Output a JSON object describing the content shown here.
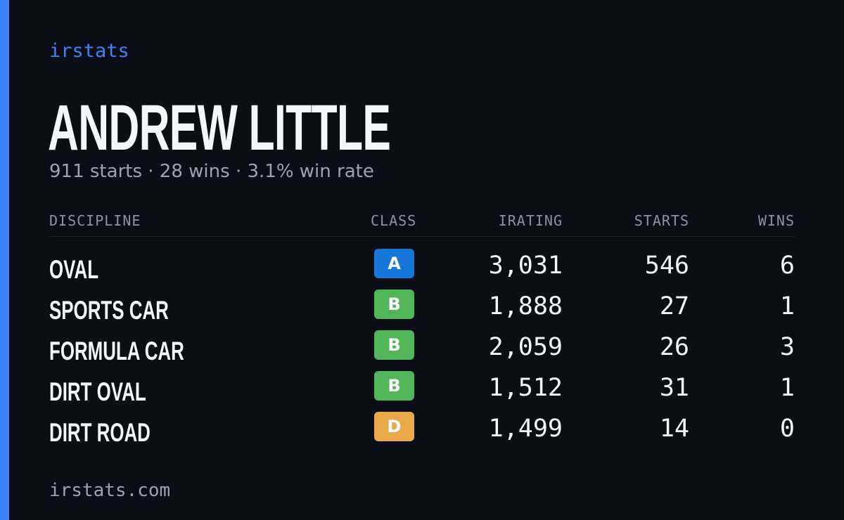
{
  "brand": "irstats",
  "driver": {
    "name": "ANDREW LITTLE",
    "starts_text": "911 starts",
    "separator": "·",
    "wins_text": "28 wins",
    "win_rate_text": "3.1% win rate"
  },
  "table": {
    "headers": {
      "discipline": "DISCIPLINE",
      "class": "CLASS",
      "irating": "IRATING",
      "starts": "STARTS",
      "wins": "WINS"
    },
    "rows": [
      {
        "discipline": "OVAL",
        "class": "A",
        "class_color": "#1677d9",
        "irating": "3,031",
        "starts": "546",
        "wins": "6"
      },
      {
        "discipline": "SPORTS CAR",
        "class": "B",
        "class_color": "#52b55a",
        "irating": "1,888",
        "starts": "27",
        "wins": "1"
      },
      {
        "discipline": "FORMULA CAR",
        "class": "B",
        "class_color": "#52b55a",
        "irating": "2,059",
        "starts": "26",
        "wins": "3"
      },
      {
        "discipline": "DIRT OVAL",
        "class": "B",
        "class_color": "#52b55a",
        "irating": "1,512",
        "starts": "31",
        "wins": "1"
      },
      {
        "discipline": "DIRT ROAD",
        "class": "D",
        "class_color": "#e8a94a",
        "irating": "1,499",
        "starts": "14",
        "wins": "0"
      }
    ]
  },
  "footer": {
    "url": "irstats.com"
  },
  "colors": {
    "background": "#0b0e16",
    "accent": "#3b82f6",
    "text_primary": "#f4f6fb",
    "text_muted": "#9aa3b5"
  }
}
